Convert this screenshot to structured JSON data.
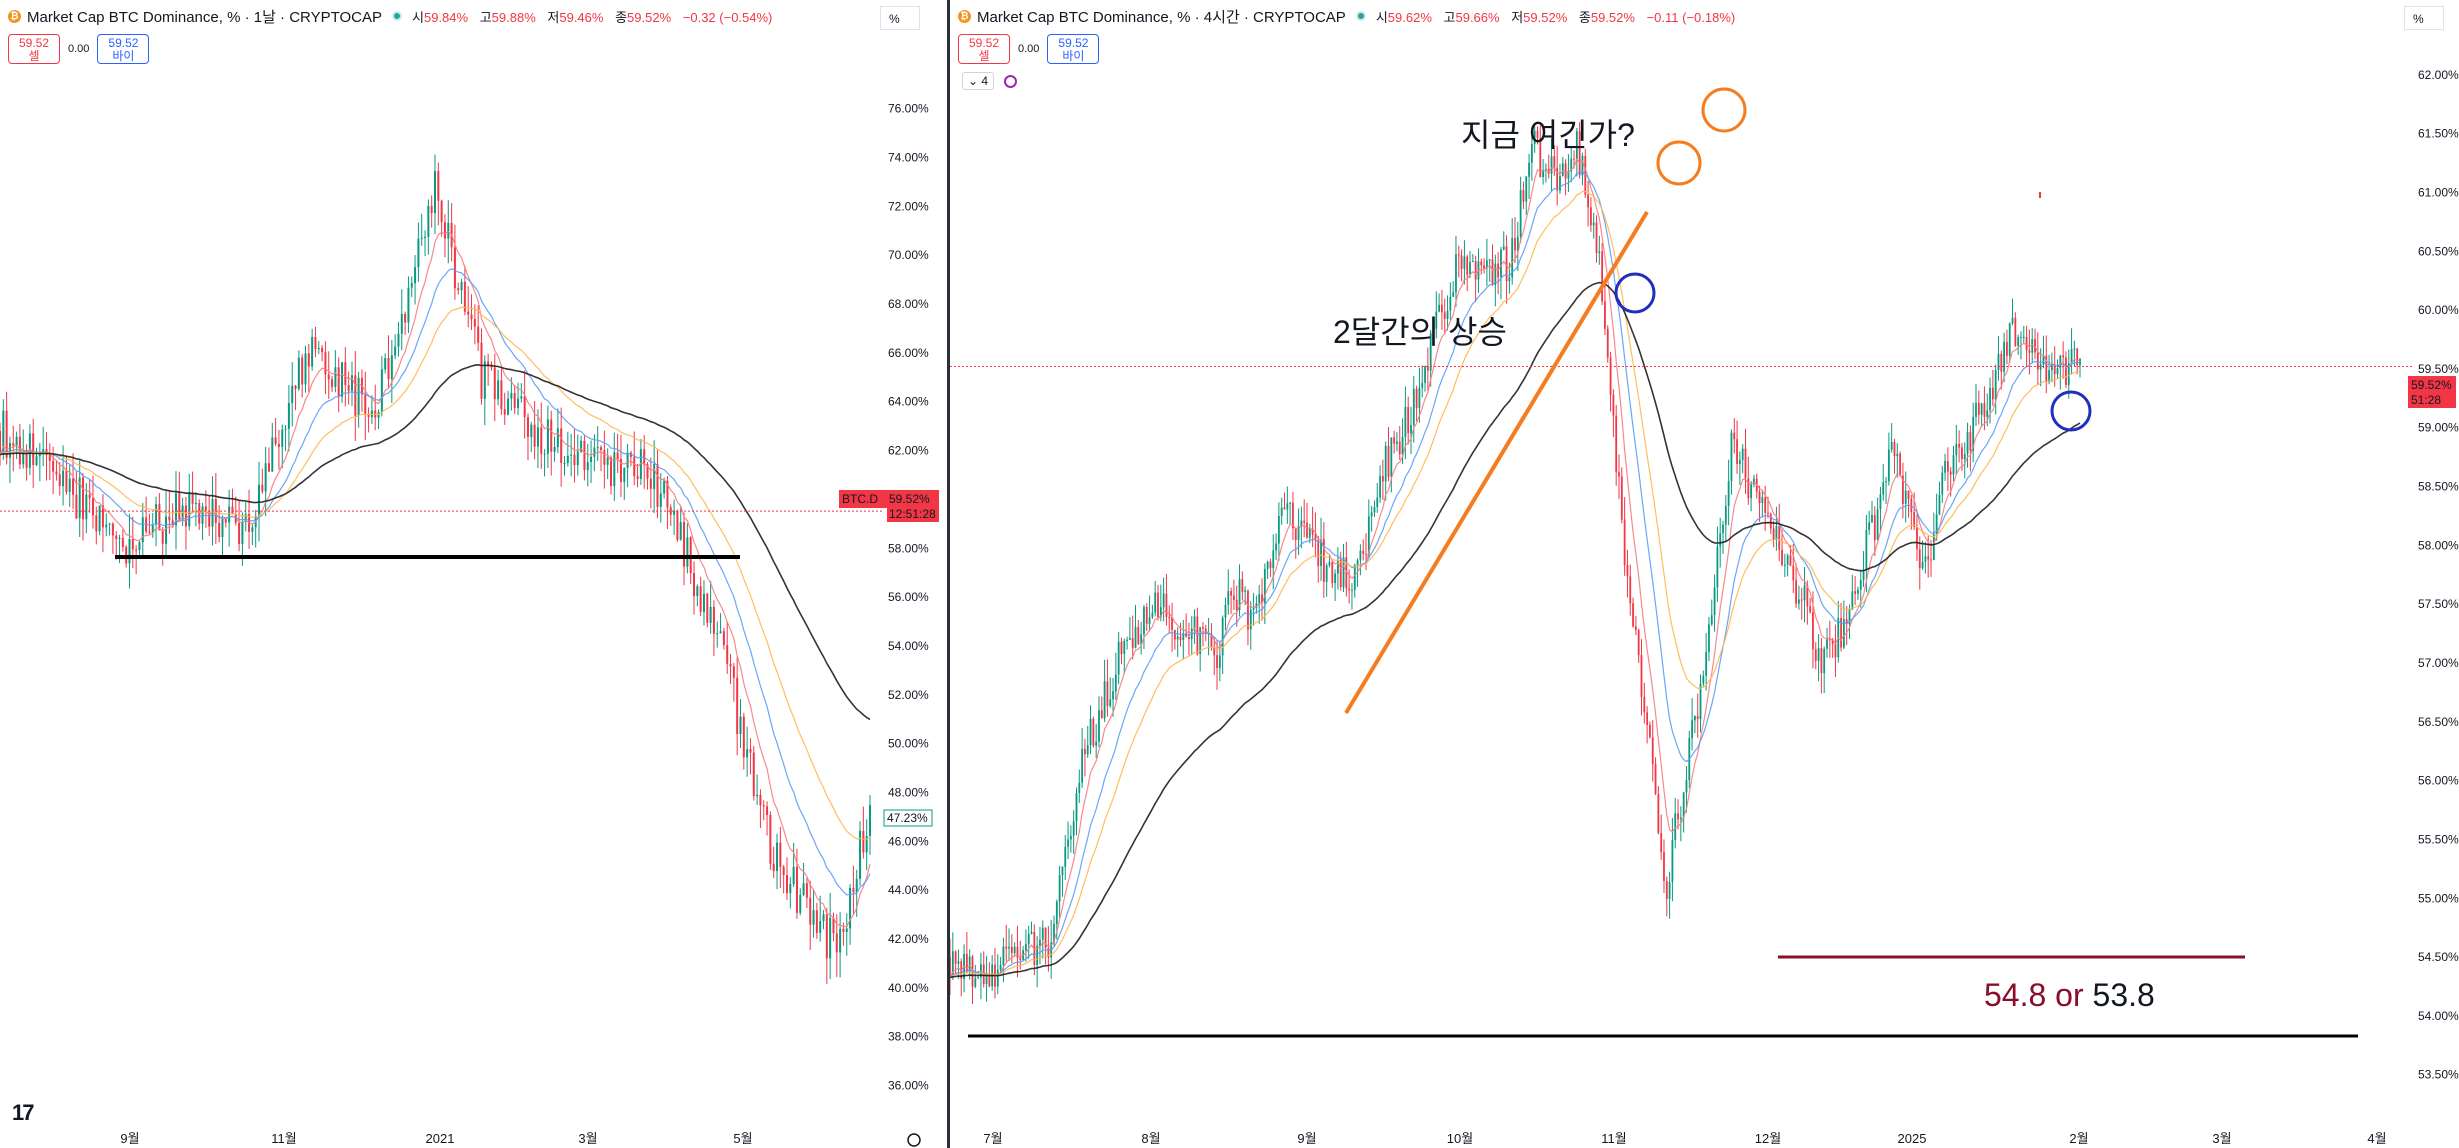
{
  "left": {
    "title": "Market Cap BTC Dominance, % · 1날 · CRYPTOCAP",
    "ohlc": {
      "o_label": "시",
      "o": "59.84%",
      "h_label": "고",
      "h": "59.88%",
      "l_label": "저",
      "l": "59.46%",
      "c_label": "종",
      "c": "59.52%",
      "chg": "−0.32 (−0.54%)"
    },
    "sell": {
      "price": "59.52",
      "label": "셀"
    },
    "buy": {
      "price": "59.52",
      "label": "바이"
    },
    "spread": "0.00",
    "pct_button": "%",
    "price_tag": {
      "symbol": "BTC.D",
      "price": "59.52%",
      "countdown": "12:51:28"
    },
    "ma_tag": "47.23%",
    "tv_logo": "17"
  },
  "right": {
    "title": "Market Cap BTC Dominance, % · 4시간 · CRYPTOCAP",
    "ohlc": {
      "o_label": "시",
      "o": "59.62%",
      "h_label": "고",
      "h": "59.66%",
      "l_label": "저",
      "l": "59.52%",
      "c_label": "종",
      "c": "59.52%",
      "chg": "−0.11 (−0.18%)"
    },
    "sell": {
      "price": "59.52",
      "label": "셀"
    },
    "buy": {
      "price": "59.52",
      "label": "바이"
    },
    "spread": "0.00",
    "pct_button": "%",
    "indicator_count": "4",
    "price_tag": {
      "price": "59.52%",
      "countdown": "51:28"
    },
    "annotations": {
      "question": "지금 여긴가?",
      "rise": "2달간의 상승",
      "target_red": "54.8",
      "target_or": " or ",
      "target_black": "53.8"
    }
  },
  "colors": {
    "up": "#089981",
    "down": "#f23645",
    "ma_red": "#f77c80",
    "ma_blue": "#5b9cf6",
    "ma_orange": "#ffb74d",
    "ma_black": "#1e1e1e",
    "annotation_orange": "#f57c1f",
    "annotation_blue": "#1f2fbf",
    "target_red": "#880e2a"
  },
  "chart_data": [
    {
      "type": "line",
      "subtype": "candlestick",
      "title": "Market Cap BTC Dominance, % · 1날 · CRYPTOCAP",
      "y_axis": {
        "side": "right",
        "unit": "%",
        "ylim": [
          35.0,
          77.5
        ],
        "ticks": [
          "76.00%",
          "74.00%",
          "72.00%",
          "70.00%",
          "68.00%",
          "66.00%",
          "64.00%",
          "62.00%",
          "60.00%",
          "58.00%",
          "56.00%",
          "54.00%",
          "52.00%",
          "50.00%",
          "48.00%",
          "46.00%",
          "44.00%",
          "42.00%",
          "40.00%",
          "38.00%",
          "36.00%"
        ]
      },
      "x_axis": {
        "ticks": [
          "9월",
          "11월",
          "2021",
          "3월",
          "5월"
        ]
      },
      "series": [
        {
          "name": "price_path",
          "x": [
            0,
            40,
            80,
            120,
            160,
            200,
            240,
            280,
            310,
            340,
            380,
            420,
            460,
            500,
            540,
            560
          ],
          "y": [
            62.8,
            60.8,
            58.2,
            59.5,
            58.9,
            66.3,
            63.3,
            72.8,
            65.0,
            63.0,
            61.5,
            61.0,
            55.0,
            45.0,
            41.5,
            47.5
          ]
        }
      ],
      "horizontal_lines": [
        {
          "y": 57.2,
          "from": "9월",
          "to": "5월",
          "color": "black"
        }
      ],
      "last_price": 59.52
    },
    {
      "type": "line",
      "subtype": "candlestick",
      "title": "Market Cap BTC Dominance, % · 4시간 · CRYPTOCAP",
      "y_axis": {
        "side": "right",
        "unit": "%",
        "ylim": [
          53.2,
          62.5
        ],
        "ticks": [
          "62.00%",
          "61.50%",
          "61.00%",
          "60.50%",
          "60.00%",
          "59.50%",
          "59.00%",
          "58.50%",
          "58.00%",
          "57.50%",
          "57.00%",
          "56.50%",
          "56.00%",
          "55.50%",
          "55.00%",
          "54.50%",
          "54.00%",
          "53.50%"
        ]
      },
      "x_axis": {
        "ticks": [
          "7월",
          "8월",
          "9월",
          "10월",
          "11월",
          "12월",
          "2025",
          "2월",
          "3월",
          "4월"
        ]
      },
      "series": [
        {
          "name": "price_path",
          "x": [
            0,
            30,
            60,
            90,
            120,
            150,
            180,
            210,
            240,
            250,
            270,
            290,
            300,
            320,
            340,
            360,
            380,
            390,
            420,
            440,
            460,
            480,
            500,
            520,
            540,
            560,
            580,
            600,
            620,
            640,
            660,
            680,
            700,
            720,
            740,
            760,
            780,
            790,
            810,
            830,
            840,
            850,
            870,
            890,
            910,
            930,
            950,
            970,
            990,
            1010
          ],
          "y": [
            54.5,
            54.3,
            54.5,
            54.6,
            56.2,
            57.0,
            57.5,
            57.3,
            57.1,
            57.7,
            57.4,
            58.0,
            58.4,
            58.0,
            57.8,
            57.7,
            58.3,
            58.7,
            59.3,
            60.0,
            60.5,
            60.3,
            60.4,
            61.4,
            61.1,
            61.4,
            60.4,
            58.2,
            56.7,
            55.1,
            56.2,
            57.4,
            58.9,
            58.4,
            58.0,
            57.6,
            57.0,
            57.1,
            57.7,
            58.3,
            58.9,
            58.5,
            57.7,
            58.6,
            58.9,
            59.3,
            59.9,
            59.6,
            59.52,
            59.52
          ]
        }
      ],
      "horizontal_lines": [
        {
          "y": 54.77,
          "from": "12월",
          "to": "3월",
          "color": "#880e2a"
        },
        {
          "y": 54.08,
          "from": "7월",
          "to": "4월",
          "color": "black"
        }
      ],
      "last_price": 59.52
    }
  ]
}
